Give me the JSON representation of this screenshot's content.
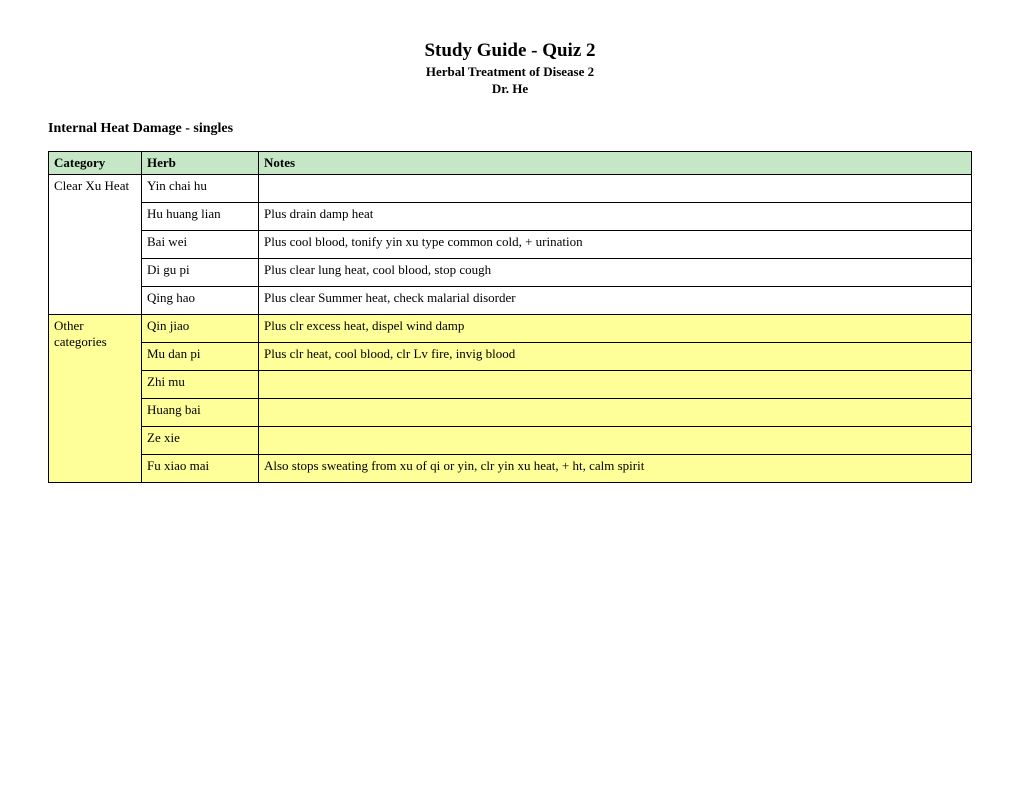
{
  "header": {
    "title": "Study Guide - Quiz 2",
    "subtitle": "Herbal Treatment of Disease 2",
    "instructor": "Dr. He"
  },
  "section_title": "Internal Heat Damage - singles",
  "table": {
    "columns": [
      "Category",
      "Herb",
      "Notes"
    ],
    "header_bg": "#c5e7c5",
    "group1_bg": "#ffffff",
    "group2_bg": "#ffff99",
    "border_color": "#000000",
    "group1": {
      "category": "Clear Xu Heat",
      "rows": [
        {
          "herb": "Yin chai hu",
          "notes": ""
        },
        {
          "herb": "Hu huang lian",
          "notes": "Plus drain damp heat"
        },
        {
          "herb": "Bai wei",
          "notes": "Plus cool blood, tonify yin xu type common cold, + urination"
        },
        {
          "herb": "Di gu pi",
          "notes": "Plus clear lung heat, cool blood, stop cough"
        },
        {
          "herb": "Qing hao",
          "notes": "Plus clear Summer heat, check malarial disorder"
        }
      ]
    },
    "group2": {
      "category": "Other categories",
      "rows": [
        {
          "herb": "Qin jiao",
          "notes": "Plus clr excess heat, dispel wind damp"
        },
        {
          "herb": "Mu dan pi",
          "notes": "Plus clr heat, cool blood, clr Lv fire, invig blood"
        },
        {
          "herb": "Zhi mu",
          "notes": ""
        },
        {
          "herb": "Huang bai",
          "notes": ""
        },
        {
          "herb": "Ze xie",
          "notes": ""
        },
        {
          "herb": "Fu xiao mai",
          "notes": "Also stops sweating from xu of qi or yin, clr yin xu heat, + ht, calm spirit"
        }
      ]
    }
  }
}
